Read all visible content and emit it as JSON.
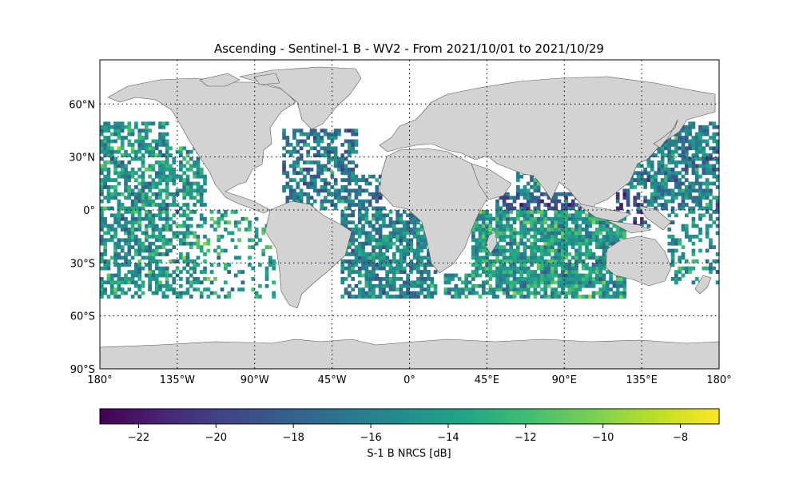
{
  "title": "Ascending - Sentinel-1 B - WV2 - From 2021/10/01 to 2021/10/29",
  "map": {
    "projection": "PlateCarree",
    "lon_range": [
      -180,
      180
    ],
    "lat_range": [
      -90,
      85
    ],
    "land_color": "#d3d3d3",
    "coast_color": "#555555",
    "grid": "dotted",
    "lon_ticks": [
      {
        "value": -180,
        "label": "180°"
      },
      {
        "value": -135,
        "label": "135°W"
      },
      {
        "value": -90,
        "label": "90°W"
      },
      {
        "value": -45,
        "label": "45°W"
      },
      {
        "value": 0,
        "label": "0°"
      },
      {
        "value": 45,
        "label": "45°E"
      },
      {
        "value": 90,
        "label": "90°E"
      },
      {
        "value": 135,
        "label": "135°E"
      },
      {
        "value": 180,
        "label": "180°"
      }
    ],
    "lat_ticks": [
      {
        "value": 60,
        "label": "60°N"
      },
      {
        "value": 30,
        "label": "30°N"
      },
      {
        "value": 0,
        "label": "0°"
      },
      {
        "value": -30,
        "label": "30°S"
      },
      {
        "value": -60,
        "label": "60°S"
      },
      {
        "value": -90,
        "label": "90°S"
      }
    ]
  },
  "chart_data": {
    "type": "heatmap",
    "variable": "S-1 B NRCS [dB]",
    "colormap": "viridis",
    "vmin": -23,
    "vmax": -7,
    "data_lat_range": [
      -50,
      50
    ],
    "cell_size_deg": 2,
    "regions": [
      {
        "lon": [
          -180,
          -140
        ],
        "lat": [
          -50,
          50
        ],
        "mean": -14.8,
        "coverage": 0.62
      },
      {
        "lon": [
          -140,
          -118
        ],
        "lat": [
          -50,
          35
        ],
        "mean": -14.5,
        "coverage": 0.5
      },
      {
        "lon": [
          -130,
          -100
        ],
        "lat": [
          -50,
          0
        ],
        "mean": -13.8,
        "coverage": 0.3
      },
      {
        "lon": [
          -100,
          -78
        ],
        "lat": [
          -50,
          -5
        ],
        "mean": -13.5,
        "coverage": 0.25
      },
      {
        "lon": [
          -75,
          -30
        ],
        "lat": [
          0,
          45
        ],
        "mean": -16.5,
        "coverage": 0.55
      },
      {
        "lon": [
          -40,
          15
        ],
        "lat": [
          -50,
          0
        ],
        "mean": -15.5,
        "coverage": 0.72
      },
      {
        "lon": [
          -30,
          -15
        ],
        "lat": [
          0,
          20
        ],
        "mean": -17,
        "coverage": 0.5
      },
      {
        "lon": [
          20,
          45
        ],
        "lat": [
          -50,
          -37
        ],
        "mean": -14.5,
        "coverage": 0.6
      },
      {
        "lon": [
          35,
          125
        ],
        "lat": [
          -50,
          0
        ],
        "mean": -14.2,
        "coverage": 0.8
      },
      {
        "lon": [
          50,
          100
        ],
        "lat": [
          -5,
          10
        ],
        "mean": -18.5,
        "coverage": 0.65
      },
      {
        "lon": [
          62,
          75
        ],
        "lat": [
          10,
          22
        ],
        "mean": -15.5,
        "coverage": 0.6
      },
      {
        "lon": [
          120,
          140
        ],
        "lat": [
          -10,
          12
        ],
        "mean": -19,
        "coverage": 0.4
      },
      {
        "lon": [
          125,
          180
        ],
        "lat": [
          0,
          50
        ],
        "mean": -16.2,
        "coverage": 0.68
      },
      {
        "lon": [
          150,
          180
        ],
        "lat": [
          -42,
          0
        ],
        "mean": -15,
        "coverage": 0.3
      }
    ]
  },
  "colorbar": {
    "label": "S-1 B NRCS [dB]",
    "ticks": [
      {
        "value": -22,
        "label": "−22"
      },
      {
        "value": -20,
        "label": "−20"
      },
      {
        "value": -18,
        "label": "−18"
      },
      {
        "value": -16,
        "label": "−16"
      },
      {
        "value": -14,
        "label": "−14"
      },
      {
        "value": -12,
        "label": "−12"
      },
      {
        "value": -10,
        "label": "−10"
      },
      {
        "value": -8,
        "label": "−8"
      }
    ]
  }
}
